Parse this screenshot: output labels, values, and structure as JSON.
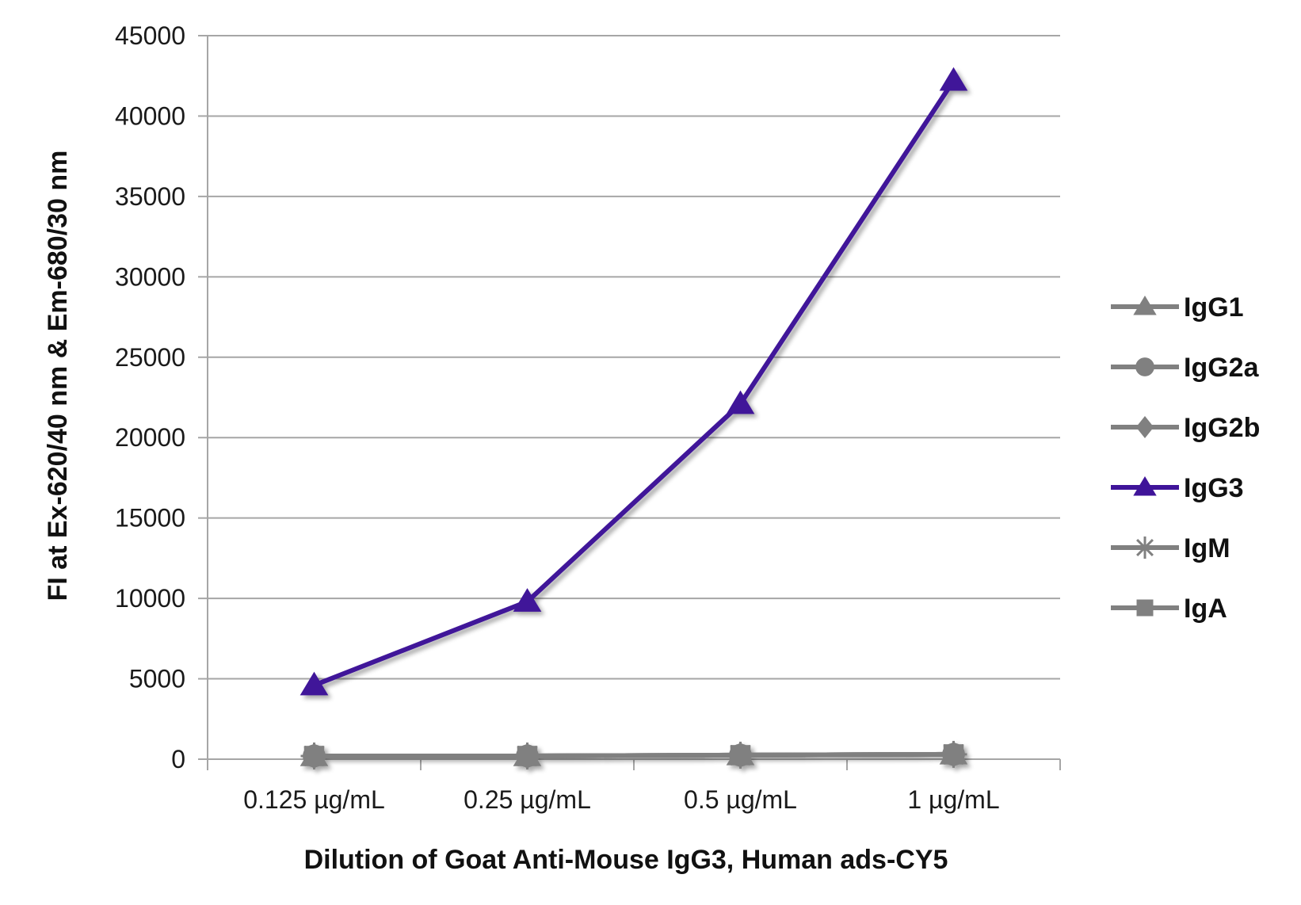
{
  "chart_data": {
    "type": "line",
    "xlabel": "Dilution of Goat Anti-Mouse IgG3, Human ads-CY5",
    "ylabel": "FI at Ex-620/40 nm & Em-680/30 nm",
    "categories": [
      "0.125 µg/mL",
      "0.25 µg/mL",
      "0.5 µg/mL",
      "1 µg/mL"
    ],
    "ylim": [
      0,
      45000
    ],
    "yticks": [
      0,
      5000,
      10000,
      15000,
      20000,
      25000,
      30000,
      35000,
      40000,
      45000
    ],
    "ytick_labels": [
      "0",
      "5000",
      "10000",
      "15000",
      "20000",
      "25000",
      "30000",
      "35000",
      "40000",
      "45000"
    ],
    "grid": "horizontal",
    "legend_position": "right",
    "series": [
      {
        "name": "IgG1",
        "values": [
          200,
          200,
          250,
          300
        ],
        "color": "#808080",
        "marker": "triangle"
      },
      {
        "name": "IgG2a",
        "values": [
          200,
          200,
          250,
          300
        ],
        "color": "#808080",
        "marker": "circle"
      },
      {
        "name": "IgG2b",
        "values": [
          200,
          200,
          250,
          300
        ],
        "color": "#808080",
        "marker": "diamond"
      },
      {
        "name": "IgG3",
        "values": [
          4600,
          9800,
          22100,
          42200
        ],
        "color": "#3f1499",
        "marker": "triangle"
      },
      {
        "name": "IgM",
        "values": [
          200,
          200,
          250,
          300
        ],
        "color": "#808080",
        "marker": "star"
      },
      {
        "name": "IgA",
        "values": [
          200,
          200,
          250,
          300
        ],
        "color": "#808080",
        "marker": "square"
      }
    ]
  }
}
